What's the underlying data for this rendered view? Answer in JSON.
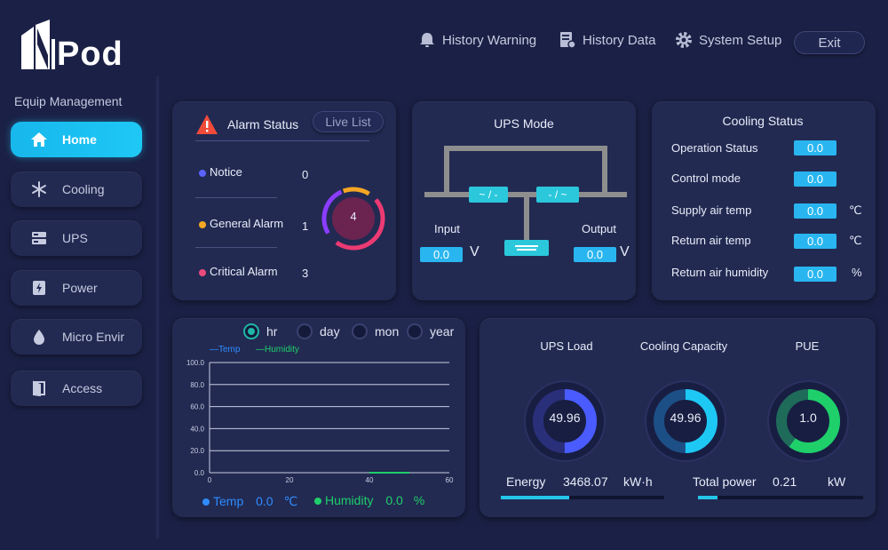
{
  "brand": {
    "name": "Pod"
  },
  "sidebar": {
    "title": "Equip Management",
    "items": [
      {
        "label": "Home",
        "icon": "home-icon",
        "active": true
      },
      {
        "label": "Cooling",
        "icon": "snowflake-icon"
      },
      {
        "label": "UPS",
        "icon": "ups-icon"
      },
      {
        "label": "Power",
        "icon": "power-icon"
      },
      {
        "label": "Micro Envir",
        "icon": "droplet-icon"
      },
      {
        "label": "Access",
        "icon": "door-icon"
      }
    ]
  },
  "header": {
    "nav": [
      {
        "label": "History Warning",
        "icon": "bell-icon"
      },
      {
        "label": "History Data",
        "icon": "document-chart-icon"
      },
      {
        "label": "System Setup",
        "icon": "gear-icon"
      }
    ],
    "exit_label": "Exit"
  },
  "alarm": {
    "title": "Alarm Status",
    "live_list": "Live List",
    "total": "4",
    "rows": [
      {
        "label": "Notice",
        "count": "0",
        "color": "#5a63ff"
      },
      {
        "label": "General Alarm",
        "count": "1",
        "color": "#f5a623"
      },
      {
        "label": "Critical Alarm",
        "count": "3",
        "color": "#ec4a7c"
      }
    ]
  },
  "ups_mode": {
    "title": "UPS Mode",
    "left_symbol": "~ / -",
    "right_symbol": "- / ~",
    "input_label": "Input",
    "output_label": "Output",
    "input_value": "0.0",
    "output_value": "0.0",
    "unit": "V"
  },
  "cooling": {
    "title": "Cooling Status",
    "rows": [
      {
        "label": "Operation Status",
        "value": "0.0",
        "unit": ""
      },
      {
        "label": "Control mode",
        "value": "0.0",
        "unit": ""
      },
      {
        "label": "Supply air temp",
        "value": "0.0",
        "unit": "℃"
      },
      {
        "label": "Return air temp",
        "value": "0.0",
        "unit": "℃"
      },
      {
        "label": "Return air humidity",
        "value": "0.0",
        "unit": "%"
      }
    ]
  },
  "trend": {
    "ranges": [
      "hr",
      "day",
      "mon",
      "year"
    ],
    "selected": "hr",
    "legend_temp": "Temp",
    "legend_humidity": "Humidity",
    "temp_label": "Temp",
    "temp_value": "0.0",
    "temp_unit": "℃",
    "humidity_label": "Humidity",
    "humidity_value": "0.0",
    "humidity_unit": "%"
  },
  "chart_data": {
    "type": "line",
    "x": [
      0,
      20,
      40,
      60
    ],
    "x_ticks": [
      "0",
      "20",
      "40",
      "60"
    ],
    "y_ticks": [
      "0.0",
      "20.0",
      "40.0",
      "60.0",
      "80.0",
      "100.0"
    ],
    "ylim": [
      0,
      100
    ],
    "xlim": [
      0,
      60
    ],
    "series": [
      {
        "name": "Temp",
        "color": "#2f8cff",
        "points": []
      },
      {
        "name": "Humidity",
        "color": "#1fcf6a",
        "points": [
          [
            40,
            0
          ],
          [
            50,
            0
          ]
        ]
      }
    ],
    "grid": true,
    "legend": "top-left"
  },
  "metrics": {
    "gauges": [
      {
        "label": "UPS Load",
        "value": "49.96",
        "fraction": 0.4996,
        "color": "#4a5cff",
        "track": "#2a2f7a"
      },
      {
        "label": "Cooling Capacity",
        "value": "49.96",
        "fraction": 0.4996,
        "color": "#1ec8f5",
        "track": "#1c4f86"
      },
      {
        "label": "PUE",
        "value": "1.0",
        "fraction": 0.6,
        "color": "#1fcf6a",
        "track": "#1f6b5a"
      }
    ],
    "energy_label": "Energy",
    "energy_value": "3468.07",
    "energy_unit": "kW·h",
    "energy_fraction": 0.42,
    "power_label": "Total power",
    "power_value": "0.21",
    "power_unit": "kW",
    "power_fraction": 0.12
  }
}
